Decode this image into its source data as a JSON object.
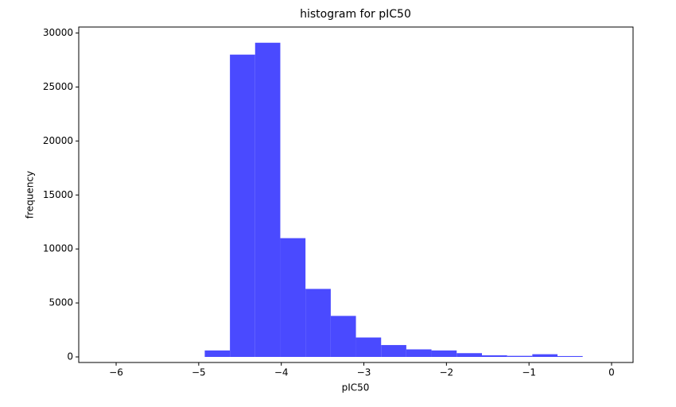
{
  "chart_data": {
    "type": "histogram",
    "title": "histogram for pIC50",
    "x_label": "pIC50",
    "y_label": "frequency",
    "bins": [
      -6.148,
      -5.843,
      -5.538,
      -5.232,
      -4.927,
      -4.622,
      -4.317,
      -4.012,
      -3.707,
      -3.401,
      -3.096,
      -2.791,
      -2.486,
      -2.181,
      -1.876,
      -1.57,
      -1.265,
      -0.96,
      -0.655,
      -0.35,
      -0.045
    ],
    "values": [
      0,
      0,
      0,
      0,
      600,
      28000,
      29100,
      11000,
      6300,
      3800,
      1800,
      1100,
      700,
      600,
      350,
      150,
      100,
      250,
      80,
      0
    ],
    "color": "#4a4aff",
    "xlim": [
      -6.453,
      0.26
    ],
    "ylim": [
      -515,
      30555
    ],
    "xticks": [
      {
        "value": -6,
        "label": "−6"
      },
      {
        "value": -5,
        "label": "−5"
      },
      {
        "value": -4,
        "label": "−4"
      },
      {
        "value": -3,
        "label": "−3"
      },
      {
        "value": -2,
        "label": "−2"
      },
      {
        "value": -1,
        "label": "−1"
      },
      0
    ],
    "yticks": [
      0,
      5000,
      10000,
      15000,
      20000,
      25000,
      30000
    ]
  }
}
